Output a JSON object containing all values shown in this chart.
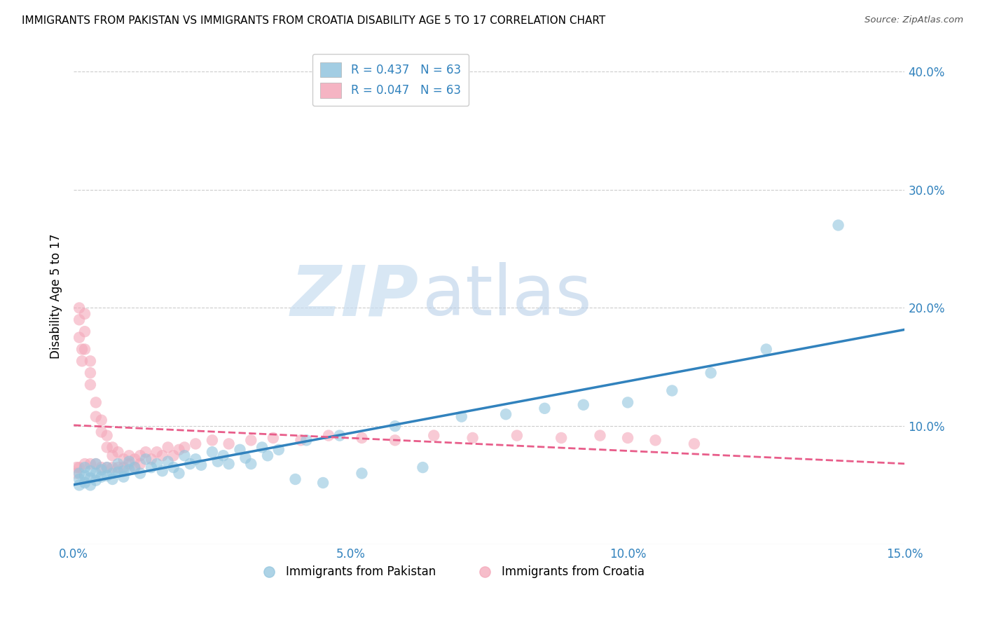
{
  "title": "IMMIGRANTS FROM PAKISTAN VS IMMIGRANTS FROM CROATIA DISABILITY AGE 5 TO 17 CORRELATION CHART",
  "source": "Source: ZipAtlas.com",
  "ylabel": "Disability Age 5 to 17",
  "xlim": [
    0.0,
    0.15
  ],
  "ylim": [
    0.0,
    0.42
  ],
  "xticks": [
    0.0,
    0.05,
    0.1,
    0.15
  ],
  "xtick_labels": [
    "0.0%",
    "5.0%",
    "10.0%",
    "15.0%"
  ],
  "yticks": [
    0.0,
    0.1,
    0.2,
    0.3,
    0.4
  ],
  "ytick_labels": [
    "",
    "10.0%",
    "20.0%",
    "30.0%",
    "40.0%"
  ],
  "r_pakistan": 0.437,
  "n_pakistan": 63,
  "r_croatia": 0.047,
  "n_croatia": 63,
  "color_pakistan": "#92c5de",
  "color_croatia": "#f4a7b9",
  "trendline_pakistan_color": "#3182bd",
  "trendline_croatia_color": "#e85d8a",
  "legend_label_pakistan": "Immigrants from Pakistan",
  "legend_label_croatia": "Immigrants from Croatia",
  "watermark_zip": "ZIP",
  "watermark_atlas": "atlas",
  "pakistan_x": [
    0.001,
    0.001,
    0.001,
    0.002,
    0.002,
    0.002,
    0.003,
    0.003,
    0.003,
    0.004,
    0.004,
    0.004,
    0.005,
    0.005,
    0.006,
    0.006,
    0.007,
    0.007,
    0.008,
    0.008,
    0.009,
    0.009,
    0.01,
    0.01,
    0.011,
    0.012,
    0.013,
    0.014,
    0.015,
    0.016,
    0.017,
    0.018,
    0.019,
    0.02,
    0.021,
    0.022,
    0.023,
    0.025,
    0.026,
    0.027,
    0.028,
    0.03,
    0.031,
    0.032,
    0.034,
    0.035,
    0.037,
    0.04,
    0.042,
    0.045,
    0.048,
    0.052,
    0.058,
    0.063,
    0.07,
    0.078,
    0.085,
    0.092,
    0.1,
    0.108,
    0.115,
    0.125,
    0.138
  ],
  "pakistan_y": [
    0.06,
    0.055,
    0.05,
    0.065,
    0.058,
    0.052,
    0.062,
    0.056,
    0.05,
    0.068,
    0.06,
    0.054,
    0.063,
    0.057,
    0.065,
    0.058,
    0.06,
    0.055,
    0.068,
    0.061,
    0.062,
    0.057,
    0.07,
    0.063,
    0.065,
    0.06,
    0.072,
    0.065,
    0.068,
    0.062,
    0.07,
    0.065,
    0.06,
    0.075,
    0.068,
    0.072,
    0.067,
    0.078,
    0.07,
    0.075,
    0.068,
    0.08,
    0.073,
    0.068,
    0.082,
    0.075,
    0.08,
    0.055,
    0.088,
    0.052,
    0.092,
    0.06,
    0.1,
    0.065,
    0.108,
    0.11,
    0.115,
    0.118,
    0.12,
    0.13,
    0.145,
    0.165,
    0.27
  ],
  "croatia_x": [
    0.0005,
    0.0005,
    0.001,
    0.001,
    0.001,
    0.001,
    0.0015,
    0.0015,
    0.002,
    0.002,
    0.002,
    0.002,
    0.003,
    0.003,
    0.003,
    0.003,
    0.004,
    0.004,
    0.004,
    0.005,
    0.005,
    0.005,
    0.006,
    0.006,
    0.006,
    0.007,
    0.007,
    0.007,
    0.008,
    0.008,
    0.009,
    0.009,
    0.01,
    0.01,
    0.011,
    0.011,
    0.012,
    0.012,
    0.013,
    0.014,
    0.015,
    0.016,
    0.017,
    0.018,
    0.019,
    0.02,
    0.022,
    0.025,
    0.028,
    0.032,
    0.036,
    0.041,
    0.046,
    0.052,
    0.058,
    0.065,
    0.072,
    0.08,
    0.088,
    0.095,
    0.1,
    0.105,
    0.112
  ],
  "croatia_y": [
    0.065,
    0.06,
    0.2,
    0.19,
    0.175,
    0.065,
    0.165,
    0.155,
    0.195,
    0.18,
    0.165,
    0.068,
    0.155,
    0.145,
    0.135,
    0.068,
    0.12,
    0.108,
    0.068,
    0.105,
    0.095,
    0.065,
    0.092,
    0.082,
    0.065,
    0.082,
    0.075,
    0.065,
    0.078,
    0.065,
    0.072,
    0.065,
    0.075,
    0.068,
    0.072,
    0.065,
    0.075,
    0.068,
    0.078,
    0.072,
    0.078,
    0.075,
    0.082,
    0.075,
    0.08,
    0.082,
    0.085,
    0.088,
    0.085,
    0.088,
    0.09,
    0.088,
    0.092,
    0.09,
    0.088,
    0.092,
    0.09,
    0.092,
    0.09,
    0.092,
    0.09,
    0.088,
    0.085
  ]
}
